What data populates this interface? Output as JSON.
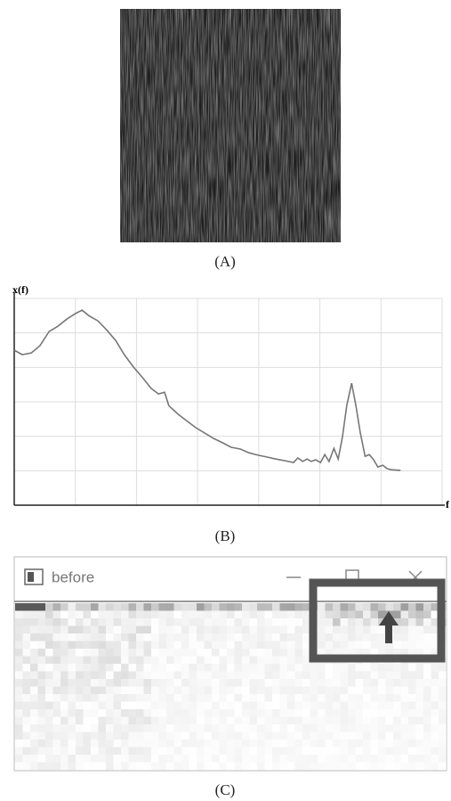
{
  "panels": [
    {
      "label": "(A)"
    },
    {
      "label": "(B)",
      "chart_data": {
        "type": "line",
        "y_label": "x(f)",
        "x_label": "f",
        "xlim": [
          0,
          7
        ],
        "ylim": [
          0,
          6
        ],
        "xticks": [
          1,
          2,
          3,
          4,
          5,
          6,
          7
        ],
        "yticks": [
          1,
          2,
          3,
          4,
          5,
          6
        ],
        "grid": true,
        "series": [
          {
            "color": "#777777",
            "x": [
              0,
              0.13,
              0.28,
              0.42,
              0.57,
              0.71,
              0.86,
              1.0,
              1.11,
              1.22,
              1.37,
              1.51,
              1.66,
              1.8,
              1.95,
              2.1,
              2.24,
              2.36,
              2.46,
              2.53,
              2.68,
              2.82,
              2.97,
              3.12,
              3.26,
              3.41,
              3.55,
              3.7,
              3.84,
              3.99,
              4.13,
              4.28,
              4.43,
              4.57,
              4.64,
              4.72,
              4.79,
              4.86,
              4.93,
              5.01,
              5.08,
              5.15,
              5.23,
              5.3,
              5.37,
              5.44,
              5.52,
              5.59,
              5.66,
              5.74,
              5.81,
              5.88,
              5.95,
              6.03,
              6.1,
              6.17,
              6.32
            ],
            "values": [
              4.5,
              4.37,
              4.42,
              4.63,
              5.04,
              5.19,
              5.4,
              5.56,
              5.66,
              5.5,
              5.35,
              5.09,
              4.78,
              4.37,
              4.01,
              3.7,
              3.39,
              3.23,
              3.28,
              2.89,
              2.64,
              2.45,
              2.25,
              2.09,
              1.94,
              1.81,
              1.68,
              1.63,
              1.52,
              1.45,
              1.4,
              1.34,
              1.29,
              1.24,
              1.37,
              1.27,
              1.34,
              1.27,
              1.32,
              1.24,
              1.47,
              1.27,
              1.65,
              1.34,
              1.99,
              2.89,
              3.54,
              2.89,
              2.12,
              1.42,
              1.47,
              1.32,
              1.11,
              1.16,
              1.06,
              1.03,
              1.01
            ]
          }
        ]
      }
    },
    {
      "label": "(C)",
      "window_title": "before"
    }
  ]
}
